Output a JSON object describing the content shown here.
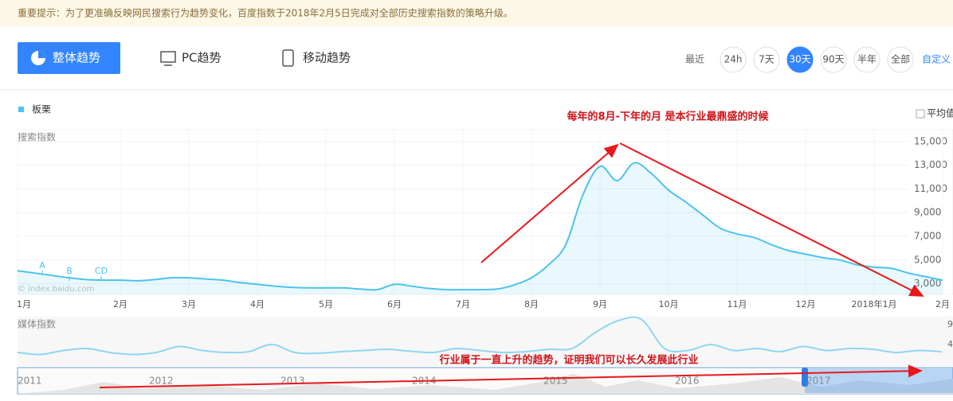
{
  "notice": "重要提示：为了更准确反映网民搜索行为趋势变化，百度指数于2018年2月5日完成对全部历史搜索指数的策略升级。",
  "tabs": [
    "整体趋势",
    "PC趋势",
    "移动趋势"
  ],
  "period": {
    "label": "最近",
    "options": [
      "24h",
      "7天",
      "30天",
      "90天",
      "半年",
      "全部"
    ],
    "custom": "自定义"
  },
  "average_label": "平均值",
  "annotations": [
    "每年的8月-下年的月 是本行业最鼎盛的时候",
    "行业属于一直上升的趋势，证明我们可以长久发展此行业"
  ],
  "markers": [
    "A",
    "B",
    "CD"
  ],
  "watermark": "© index.baidu.com",
  "chart_data": [
    {
      "type": "line",
      "y_label": "搜索指数",
      "categories": [
        "1月",
        null,
        null,
        null,
        null,
        null,
        "2月",
        null,
        null,
        null,
        "3月",
        null,
        null,
        null,
        "4月",
        null,
        null,
        null,
        "5月",
        null,
        null,
        null,
        "6月",
        null,
        null,
        null,
        "7月",
        null,
        null,
        null,
        "8月",
        null,
        null,
        null,
        "9月",
        null,
        null,
        null,
        "10月",
        null,
        null,
        null,
        "11月",
        null,
        null,
        null,
        "12月",
        null,
        null,
        null,
        "2018年1月",
        null,
        null,
        null,
        "2月"
      ],
      "series": [
        {
          "name": "板栗",
          "color": "#4cc3ec",
          "values": [
            4100,
            3900,
            3700,
            3500,
            3350,
            3300,
            3300,
            3250,
            3350,
            3500,
            3500,
            3400,
            3300,
            3100,
            2950,
            2800,
            2700,
            2650,
            2650,
            2650,
            2550,
            2500,
            2950,
            2800,
            2600,
            2500,
            2500,
            2500,
            2550,
            2900,
            3500,
            4600,
            6300,
            10500,
            12900,
            11700,
            13200,
            12300,
            10900,
            9900,
            8800,
            7700,
            7200,
            6900,
            6300,
            5800,
            5500,
            5200,
            5000,
            4600,
            4400,
            4300,
            3900,
            3600,
            3300
          ]
        }
      ],
      "ylim": [
        2100,
        16000
      ],
      "yticks": [
        {
          "value": 15000,
          "label": "15,000"
        },
        {
          "value": 13000,
          "label": "13,000"
        },
        {
          "value": 11000,
          "label": "11,000"
        },
        {
          "value": 9000,
          "label": "9,000"
        },
        {
          "value": 7000,
          "label": "7,000"
        },
        {
          "value": 5000,
          "label": "5,000"
        },
        {
          "value": 3000,
          "label": "3,000"
        }
      ],
      "grid": true
    },
    {
      "type": "line",
      "y_label": "媒体指数",
      "series": [
        {
          "color": "#8fd6f3",
          "values": [
            2,
            1.5,
            2.5,
            3,
            2,
            1.5,
            2,
            3.5,
            2.5,
            2,
            2.2,
            4,
            2,
            1.8,
            2.2,
            2.5,
            2.8,
            2.3,
            2,
            3,
            2.5,
            2,
            2.2,
            2.8,
            3,
            7,
            10,
            10.3,
            3,
            2.5,
            4,
            2.5,
            3,
            2.2,
            3.5,
            2.5,
            3,
            2.8,
            2,
            2.5,
            2.2
          ]
        }
      ],
      "ylim": [
        -1.4,
        10.6
      ],
      "yticks": [
        9,
        4
      ]
    }
  ],
  "timeline": {
    "years": [
      "2011",
      "2012",
      "2013",
      "2014",
      "2015",
      "2016",
      "2017"
    ]
  }
}
